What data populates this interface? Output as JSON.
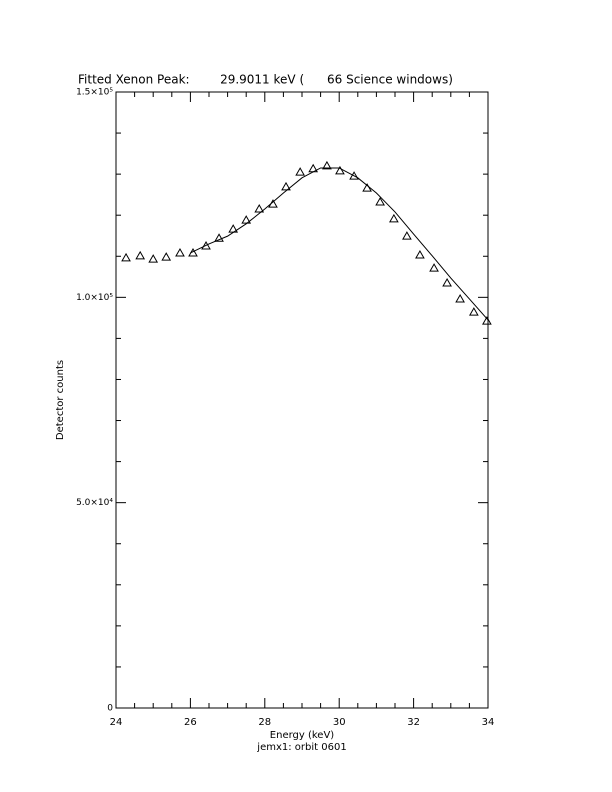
{
  "chart_data": {
    "type": "scatter",
    "title": "Fitted Xenon Peak:        29.9011 keV (      66 Science windows)",
    "x_label": "Energy (keV)",
    "y_label": "Detector counts",
    "footer": "jemx1: orbit 0601",
    "xlim": [
      24,
      34
    ],
    "xticks": [
      24,
      26,
      28,
      30,
      32,
      34
    ],
    "xticks_minor": [
      24.5,
      25,
      25.5,
      26.5,
      27,
      27.5,
      28.5,
      29,
      29.5,
      30.5,
      31,
      31.5,
      32.5,
      33,
      33.5
    ],
    "ylim": [
      0,
      150000
    ],
    "yticks": [
      {
        "value": 0,
        "label": "0"
      },
      {
        "value": 50000,
        "label": "5.0×10⁴"
      },
      {
        "value": 100000,
        "label": "1.0×10⁵"
      },
      {
        "value": 150000,
        "label": "1.5×10⁵"
      }
    ],
    "yticks_minor": [
      10000,
      20000,
      30000,
      40000,
      60000,
      70000,
      80000,
      90000,
      110000,
      120000,
      130000,
      140000
    ],
    "series": [
      {
        "kind": "points",
        "color": "#000000",
        "x": [
          24.27,
          24.65,
          25.0,
          25.35,
          25.72,
          26.07,
          26.42,
          26.77,
          27.15,
          27.5,
          27.85,
          28.22,
          28.57,
          28.95,
          29.3,
          29.67,
          30.02,
          30.4,
          30.75,
          31.1,
          31.47,
          31.82,
          32.17,
          32.55,
          32.9,
          33.25,
          33.62,
          33.97
        ],
        "values": [
          109600,
          110100,
          109300,
          109800,
          110800,
          110800,
          112500,
          114400,
          116600,
          118800,
          121500,
          122700,
          126900,
          130500,
          131300,
          132000,
          130800,
          129500,
          126600,
          123200,
          119100,
          114900,
          110300,
          107100,
          103500,
          99600,
          96400,
          94200
        ]
      },
      {
        "kind": "line",
        "color": "#000000",
        "x": [
          26,
          26.5,
          27,
          27.5,
          28,
          28.5,
          29,
          29.5,
          30,
          30.5,
          31,
          31.5,
          32,
          32.5,
          33,
          33.5,
          34
        ],
        "values": [
          110800,
          113000,
          114900,
          117900,
          121500,
          125400,
          129100,
          131500,
          131500,
          129100,
          125400,
          120800,
          115400,
          110100,
          104700,
          99600,
          94500
        ]
      }
    ]
  }
}
